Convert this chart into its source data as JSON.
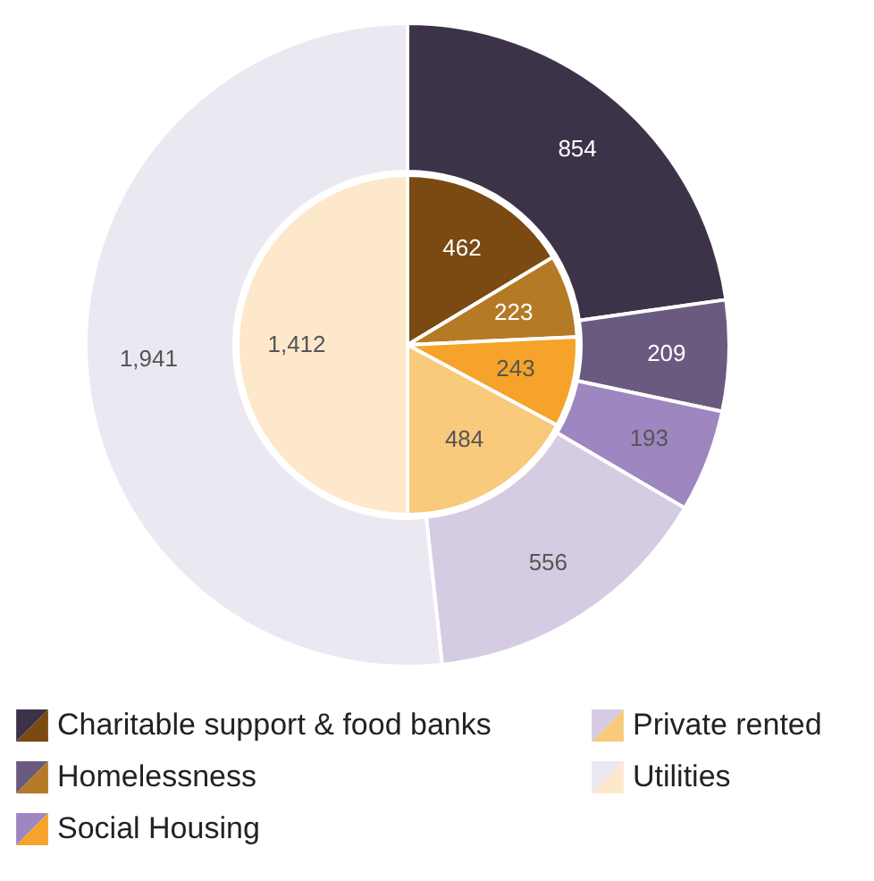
{
  "chart_data": {
    "type": "donut",
    "categories": [
      "Charitable support & food banks",
      "Homelessness",
      "Social Housing",
      "Private rented",
      "Utilities"
    ],
    "series": [
      {
        "values": [
          854,
          209,
          193,
          556,
          1941
        ],
        "value_labels": [
          "854",
          "209",
          "193",
          "556",
          "1,941"
        ],
        "colors": [
          "#3d3349",
          "#6b5a80",
          "#9e86c0",
          "#d5cce3",
          "#ece8f2"
        ]
      },
      {
        "values": [
          462,
          223,
          243,
          484,
          1412
        ],
        "value_labels": [
          "462",
          "223",
          "243",
          "484",
          "1,412"
        ],
        "colors": [
          "#7a4a12",
          "#b57a25",
          "#f5a32a",
          "#f9c97c",
          "#fde8cc"
        ]
      }
    ],
    "legend": "bottom"
  }
}
